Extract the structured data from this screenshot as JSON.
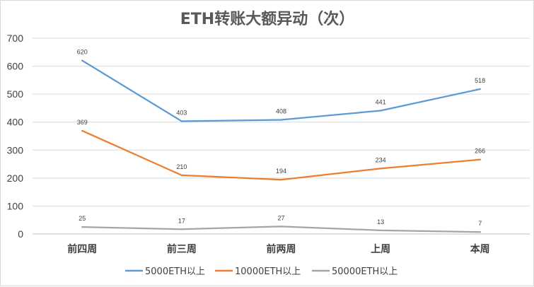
{
  "chart_data": {
    "type": "line",
    "title": "ETH转账大额异动（次）",
    "categories": [
      "前四周",
      "前三周",
      "前两周",
      "上周",
      "本周"
    ],
    "series": [
      {
        "name": "5000ETH以上",
        "color": "#5B9BD5",
        "values": [
          620,
          403,
          408,
          441,
          518
        ]
      },
      {
        "name": "10000ETH以上",
        "color": "#ED7D31",
        "values": [
          369,
          210,
          194,
          234,
          266
        ]
      },
      {
        "name": "50000ETH以上",
        "color": "#A5A5A5",
        "values": [
          25,
          17,
          27,
          13,
          7
        ]
      }
    ],
    "ylim": [
      0,
      700
    ],
    "yticks": [
      0,
      100,
      200,
      300,
      400,
      500,
      600,
      700
    ],
    "grid": true,
    "legend": "bottom",
    "data_labels": true
  }
}
